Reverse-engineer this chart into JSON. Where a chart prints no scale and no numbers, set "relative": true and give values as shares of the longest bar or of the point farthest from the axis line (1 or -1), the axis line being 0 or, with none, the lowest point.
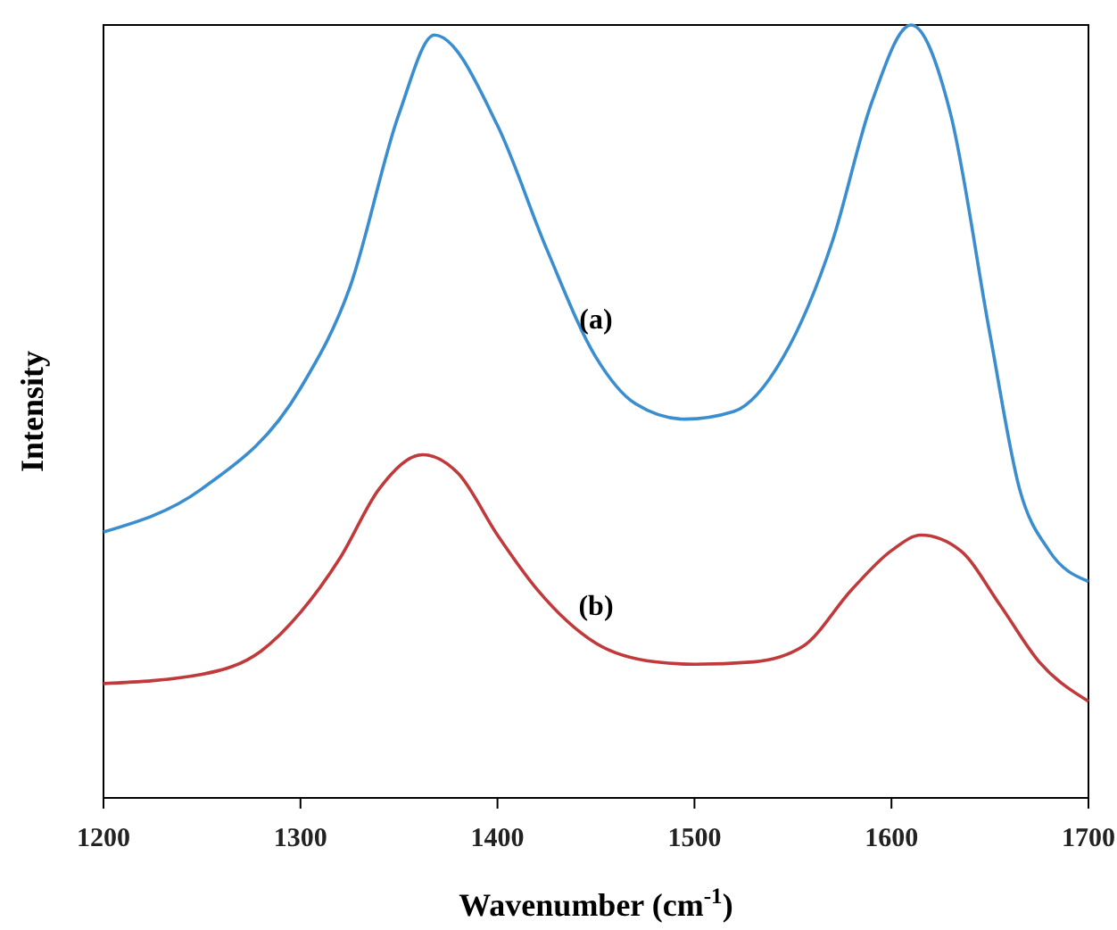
{
  "chart_data": {
    "type": "line",
    "relative": true,
    "xlabel": "Wavenumber (cm$^{-1}$)",
    "ylabel": "Intensity",
    "xlim": [
      1200,
      1700
    ],
    "xticks": [
      1200,
      1300,
      1400,
      1500,
      1600,
      1700
    ],
    "marker": "none",
    "line_style": "solid",
    "series": [
      {
        "name": "(a)",
        "color": "#3a8ecf",
        "x": [
          1200,
          1250,
          1300,
          1325,
          1350,
          1368,
          1400,
          1425,
          1450,
          1470,
          1495,
          1520,
          1545,
          1570,
          1590,
          1610,
          1630,
          1650,
          1665,
          1680,
          1700
        ],
        "values": [
          0.344,
          0.4,
          0.53,
          0.66,
          0.885,
          0.987,
          0.87,
          0.71,
          0.57,
          0.51,
          0.49,
          0.5,
          0.57,
          0.72,
          0.9,
          1.0,
          0.885,
          0.6,
          0.4,
          0.32,
          0.28
        ]
      },
      {
        "name": "(b)",
        "color": "#c0393b",
        "x": [
          1200,
          1250,
          1280,
          1300,
          1320,
          1340,
          1362,
          1380,
          1400,
          1420,
          1450,
          1480,
          1500,
          1530,
          1555,
          1580,
          1600,
          1615,
          1635,
          1655,
          1675,
          1700
        ],
        "values": [
          0.148,
          0.16,
          0.19,
          0.24,
          0.31,
          0.4,
          0.444,
          0.42,
          0.34,
          0.27,
          0.2,
          0.176,
          0.173,
          0.176,
          0.196,
          0.27,
          0.32,
          0.34,
          0.32,
          0.25,
          0.176,
          0.125
        ]
      }
    ]
  }
}
